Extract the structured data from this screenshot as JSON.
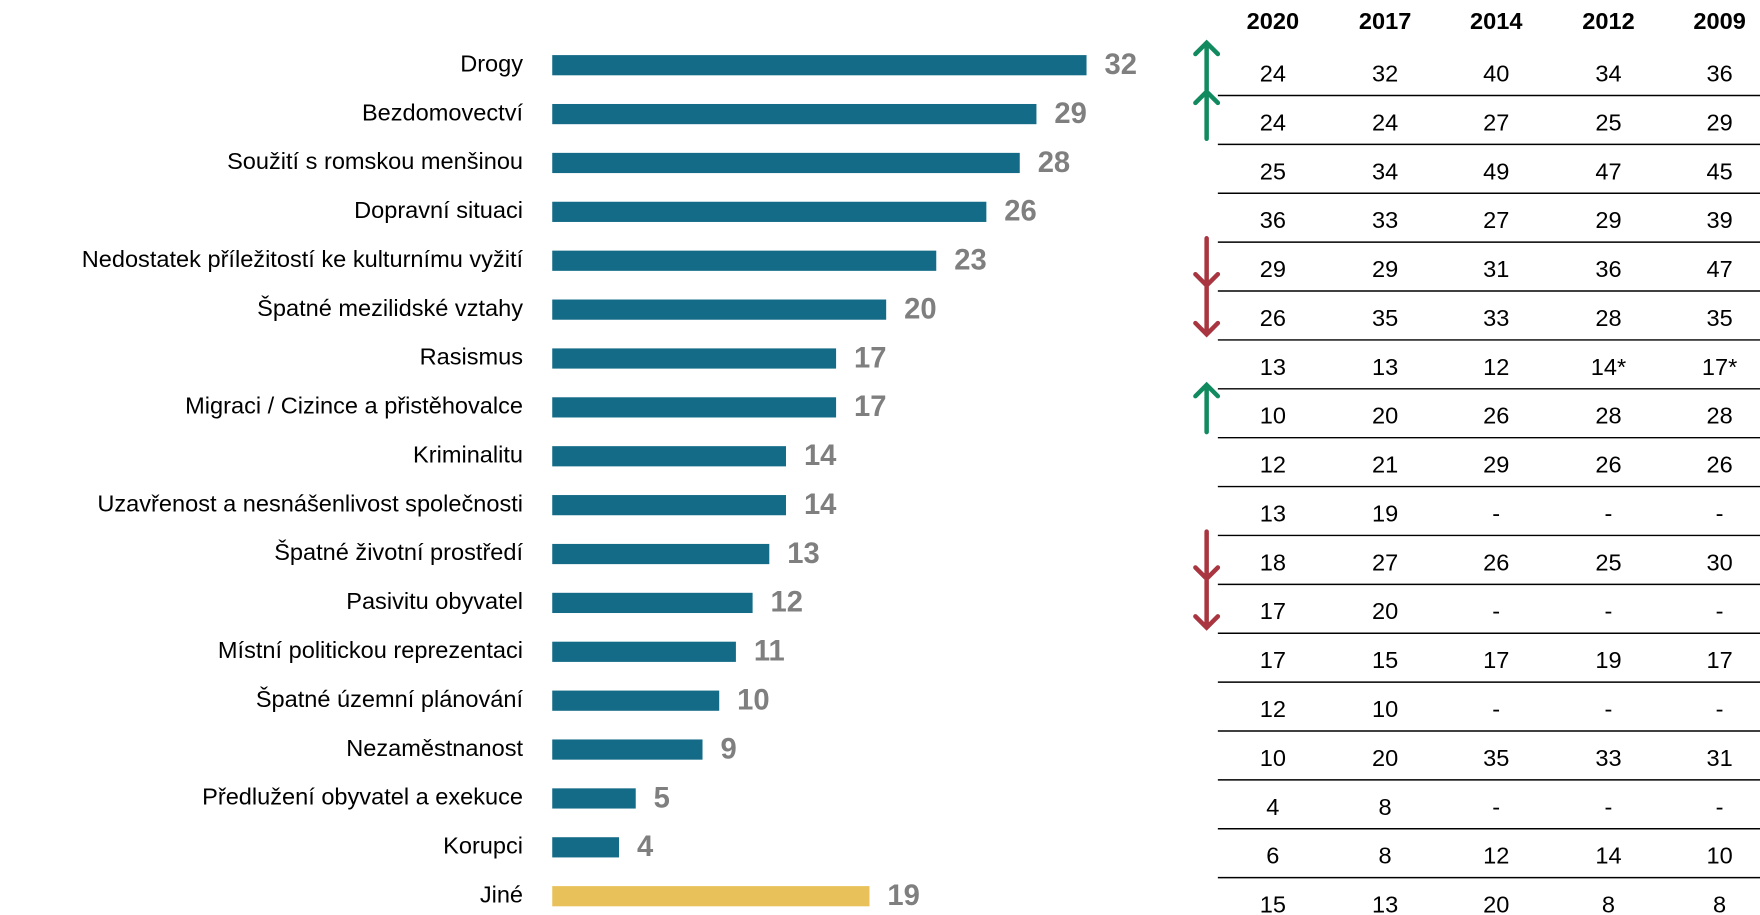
{
  "chart_data": {
    "type": "bar",
    "orientation": "horizontal",
    "categories": [
      "Drogy",
      "Bezdomovectví",
      "Soužití s romskou menšinou",
      "Dopravní situaci",
      "Nedostatek příležitostí ke kulturnímu vyžití",
      "Špatné mezilidské vztahy",
      "Rasismus",
      "Migraci / Cizince a přistěhovalce",
      "Kriminalitu",
      "Uzavřenost a nesnášenlivost společnosti",
      "Špatné životní prostředí",
      "Pasivitu obyvatel",
      "Místní politickou reprezentaci",
      "Špatné územní plánování",
      "Nezaměstnanost",
      "Předlužení obyvatel a exekuce",
      "Korupci",
      "Jiné"
    ],
    "values": [
      32,
      29,
      28,
      26,
      23,
      20,
      17,
      17,
      14,
      14,
      13,
      12,
      11,
      10,
      9,
      5,
      4,
      19
    ],
    "colors": [
      "#136b87",
      "#136b87",
      "#136b87",
      "#136b87",
      "#136b87",
      "#136b87",
      "#136b87",
      "#136b87",
      "#136b87",
      "#136b87",
      "#136b87",
      "#136b87",
      "#136b87",
      "#136b87",
      "#136b87",
      "#136b87",
      "#136b87",
      "#e8c15a"
    ],
    "trends": [
      "up",
      "up",
      null,
      null,
      "down",
      "down",
      null,
      "up",
      null,
      null,
      "down",
      "down",
      null,
      null,
      null,
      null,
      null,
      null
    ]
  },
  "table": {
    "columns": [
      "2020",
      "2017",
      "2014",
      "2012",
      "2009"
    ],
    "rows": [
      [
        24,
        32,
        40,
        34,
        36
      ],
      [
        24,
        24,
        27,
        25,
        29
      ],
      [
        25,
        34,
        49,
        47,
        45
      ],
      [
        36,
        33,
        27,
        29,
        39
      ],
      [
        29,
        29,
        31,
        36,
        47
      ],
      [
        26,
        35,
        33,
        28,
        35
      ],
      [
        13,
        13,
        12,
        "14*",
        "17*"
      ],
      [
        10,
        20,
        26,
        28,
        28
      ],
      [
        12,
        21,
        29,
        26,
        26
      ],
      [
        13,
        19,
        "-",
        "-",
        "-"
      ],
      [
        18,
        27,
        26,
        25,
        30
      ],
      [
        17,
        20,
        "-",
        "-",
        "-"
      ],
      [
        17,
        15,
        17,
        19,
        17
      ],
      [
        12,
        10,
        "-",
        "-",
        "-"
      ],
      [
        10,
        20,
        35,
        33,
        31
      ],
      [
        4,
        8,
        "-",
        "-",
        "-"
      ],
      [
        6,
        8,
        12,
        14,
        10
      ],
      [
        15,
        13,
        20,
        8,
        8
      ]
    ]
  }
}
